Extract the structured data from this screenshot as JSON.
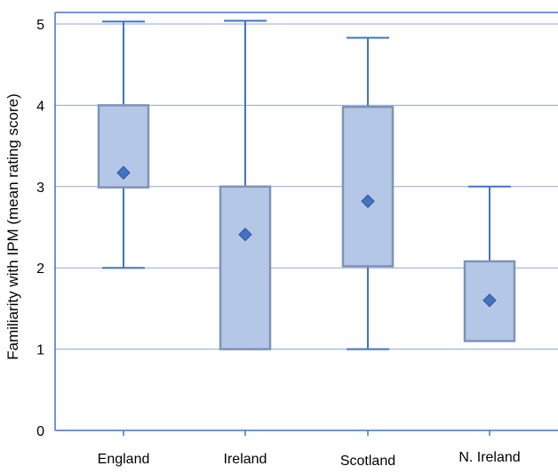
{
  "chart_data": {
    "type": "box",
    "title": "",
    "xlabel": "",
    "ylabel": "Familiarity with IPM (mean rating score)",
    "ylim": [
      0,
      5
    ],
    "yticks": [
      0,
      1,
      2,
      3,
      4,
      5
    ],
    "grid": true,
    "categories": [
      "England",
      "Ireland",
      "Scotland",
      "N. Ireland"
    ],
    "boxes": [
      {
        "category": "England",
        "min": 2.0,
        "q1": 2.99,
        "q3": 4.0,
        "max": 5.03,
        "mean": 3.17
      },
      {
        "category": "Ireland",
        "min": 1.0,
        "q1": 1.0,
        "q3": 3.0,
        "max": 5.04,
        "mean": 2.41
      },
      {
        "category": "Scotland",
        "min": 1.0,
        "q1": 2.02,
        "q3": 3.98,
        "max": 4.83,
        "mean": 2.82
      },
      {
        "category": "N. Ireland",
        "min": 1.1,
        "q1": 1.1,
        "q3": 2.08,
        "max": 3.0,
        "mean": 1.6
      }
    ],
    "colors": {
      "box_fill": "#b4c7e7",
      "box_stroke": "#7f93b8",
      "whisker": "#4472c4",
      "mean_marker": "#4472c4",
      "grid": "#8faadc",
      "axis": "#4472c4",
      "text": "#000000"
    }
  }
}
